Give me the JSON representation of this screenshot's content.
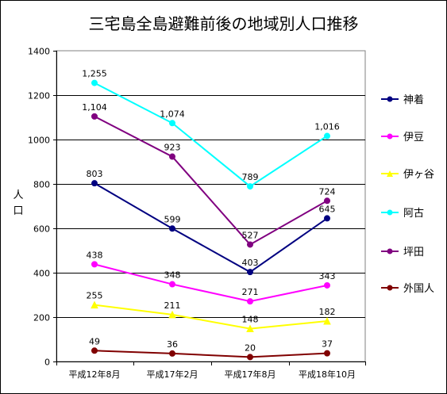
{
  "chart_data": {
    "type": "line",
    "title": "三宅島全島避難前後の地域別人口推移",
    "ylabel": [
      "人",
      "口"
    ],
    "xlabel": "",
    "ylim": [
      0,
      1400
    ],
    "yticks": [
      0,
      200,
      400,
      600,
      800,
      1000,
      1200,
      1400
    ],
    "grid": true,
    "legend_position": "right",
    "categories": [
      "平成12年8月",
      "平成17年2月",
      "平成17年8月",
      "平成18年10月"
    ],
    "series": [
      {
        "name": "神着",
        "color": "#000080",
        "marker": "circle",
        "values": [
          803,
          599,
          403,
          645
        ],
        "labels": [
          "803",
          "599",
          "403",
          "645"
        ]
      },
      {
        "name": "伊豆",
        "color": "#ff00ff",
        "marker": "circle",
        "values": [
          438,
          348,
          271,
          343
        ],
        "labels": [
          "438",
          "348",
          "271",
          "343"
        ]
      },
      {
        "name": "伊ヶ谷",
        "color": "#ffff00",
        "marker": "triangle",
        "values": [
          255,
          211,
          148,
          182
        ],
        "labels": [
          "255",
          "211",
          "148",
          "182"
        ]
      },
      {
        "name": "阿古",
        "color": "#00ffff",
        "marker": "circle",
        "values": [
          1255,
          1074,
          789,
          1016
        ],
        "labels": [
          "1,255",
          "1,074",
          "789",
          "1,016"
        ]
      },
      {
        "name": "坪田",
        "color": "#800080",
        "marker": "circle",
        "values": [
          1104,
          923,
          527,
          724
        ],
        "labels": [
          "1,104",
          "923",
          "527",
          "724"
        ]
      },
      {
        "name": "外国人",
        "color": "#800000",
        "marker": "circle",
        "values": [
          49,
          36,
          20,
          37
        ],
        "labels": [
          "49",
          "36",
          "20",
          "37"
        ]
      }
    ]
  }
}
